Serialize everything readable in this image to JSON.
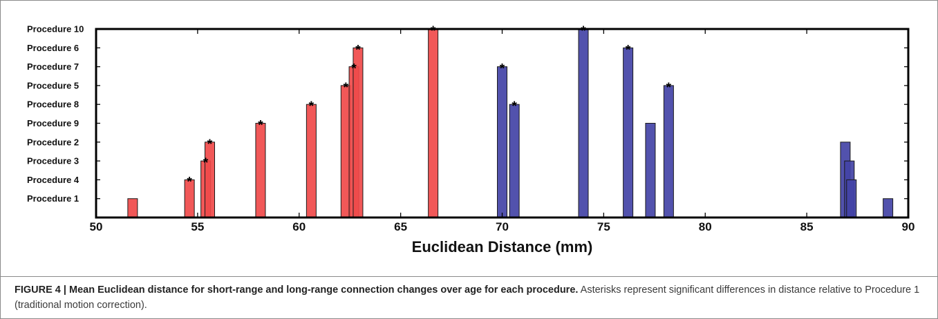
{
  "chart_data": {
    "type": "bar",
    "orientation": "horizontal-categories-vertical-bars",
    "xlabel": "Euclidean Distance (mm)",
    "xlim": [
      50,
      90
    ],
    "xticks": [
      "50",
      "55",
      "60",
      "65",
      "70",
      "75",
      "80",
      "85",
      "90"
    ],
    "categories": [
      "Procedure 1",
      "Procedure 4",
      "Procedure 3",
      "Procedure 2",
      "Procedure 9",
      "Procedure 8",
      "Procedure 5",
      "Procedure 7",
      "Procedure 6",
      "Procedure 10"
    ],
    "series": [
      {
        "color": "#f04a4a",
        "values": [
          {
            "procedure": "Procedure 1",
            "x": 51.8,
            "significant": false
          },
          {
            "procedure": "Procedure 4",
            "x": 54.6,
            "significant": true
          },
          {
            "procedure": "Procedure 3",
            "x": 55.4,
            "significant": true
          },
          {
            "procedure": "Procedure 2",
            "x": 55.6,
            "significant": true
          },
          {
            "procedure": "Procedure 9",
            "x": 58.1,
            "significant": true
          },
          {
            "procedure": "Procedure 8",
            "x": 60.6,
            "significant": true
          },
          {
            "procedure": "Procedure 5",
            "x": 62.3,
            "significant": true
          },
          {
            "procedure": "Procedure 7",
            "x": 62.7,
            "significant": true
          },
          {
            "procedure": "Procedure 6",
            "x": 62.9,
            "significant": true
          },
          {
            "procedure": "Procedure 10",
            "x": 66.6,
            "significant": true
          }
        ]
      },
      {
        "color": "#4343a6",
        "values": [
          {
            "procedure": "Procedure 7",
            "x": 70.0,
            "significant": true
          },
          {
            "procedure": "Procedure 8",
            "x": 70.6,
            "significant": true
          },
          {
            "procedure": "Procedure 10",
            "x": 74.0,
            "significant": true
          },
          {
            "procedure": "Procedure 6",
            "x": 76.2,
            "significant": true
          },
          {
            "procedure": "Procedure 9",
            "x": 77.3,
            "significant": false
          },
          {
            "procedure": "Procedure 5",
            "x": 78.2,
            "significant": true
          },
          {
            "procedure": "Procedure 2",
            "x": 86.9,
            "significant": false
          },
          {
            "procedure": "Procedure 3",
            "x": 87.1,
            "significant": false
          },
          {
            "procedure": "Procedure 4",
            "x": 87.2,
            "significant": false
          },
          {
            "procedure": "Procedure 1",
            "x": 89.0,
            "significant": false
          }
        ]
      }
    ],
    "significance_marker": "*",
    "grid": false,
    "legend": "none"
  },
  "caption": {
    "lead": "FIGURE 4 | Mean Euclidean distance for short-range and long-range connection changes over age for each procedure.",
    "body": " Asterisks represent significant differences in distance relative to Procedure 1 (traditional motion correction)."
  }
}
